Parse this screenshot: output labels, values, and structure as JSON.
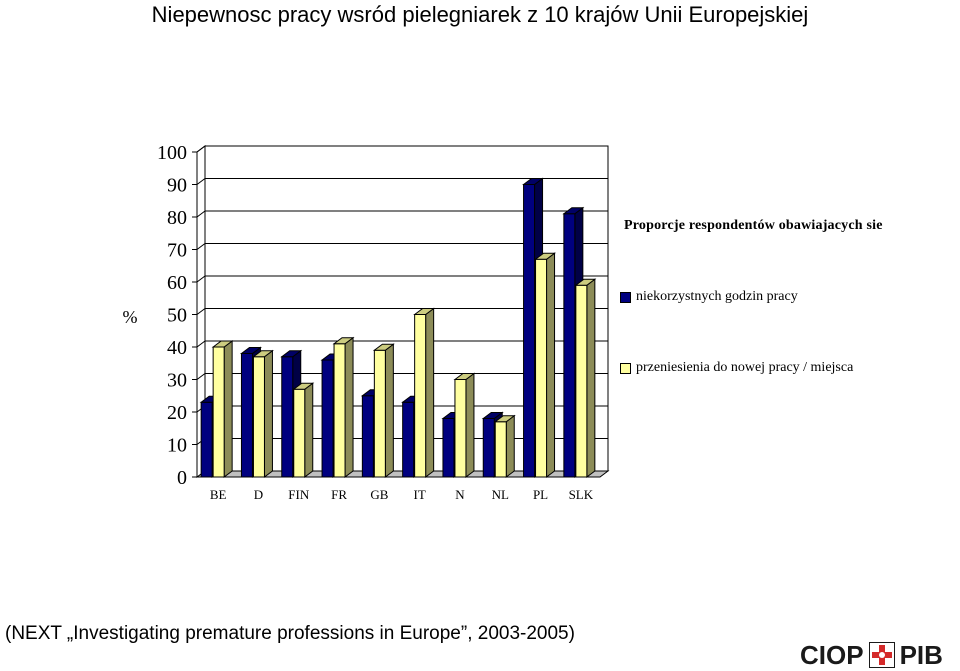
{
  "title": "Niepewnosc pracy wsród pielegniarek z 10 krajów Unii Europejskiej",
  "source": "(NEXT „Investigating premature professions in Europe”, 2003-2005)",
  "logo": {
    "left": "CIOP",
    "right": "PIB",
    "mark": "safety-cross-logo"
  },
  "colors": {
    "series1": "#00007f",
    "series2": "#ffffa0",
    "accent": "#d42a2a"
  },
  "chart_data": {
    "type": "bar",
    "style": "3d-clustered",
    "ylabel": "%",
    "ylim": [
      0,
      100
    ],
    "yticks": [
      0,
      10,
      20,
      30,
      40,
      50,
      60,
      70,
      80,
      90,
      100
    ],
    "grid": true,
    "legend_title": "Proporcje respondentów obawiajacych sie",
    "legend_position": "right",
    "categories": [
      "BE",
      "D",
      "FIN",
      "FR",
      "GB",
      "IT",
      "N",
      "NL",
      "PL",
      "SLK"
    ],
    "series": [
      {
        "name": "niekorzystnych godzin pracy",
        "values": [
          23,
          38,
          37,
          36,
          25,
          23,
          18,
          18,
          90,
          81
        ]
      },
      {
        "name": "przeniesienia do nowej pracy / miejsca",
        "values": [
          40,
          37,
          27,
          41,
          39,
          50,
          30,
          17,
          67,
          59
        ]
      }
    ]
  }
}
